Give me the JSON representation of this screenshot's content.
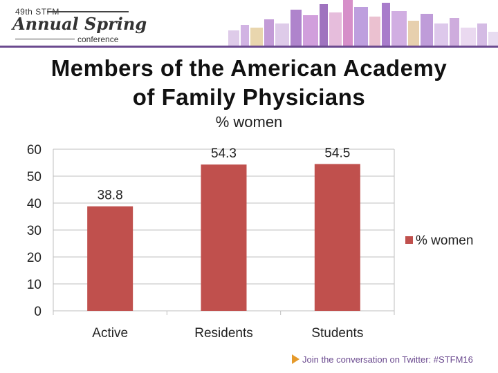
{
  "logo": {
    "edition": "49th STFM",
    "name": "Annual Spring",
    "subtitle": "conference"
  },
  "title": {
    "line1": "Members of the American Academy",
    "line2": "of Family Physicians"
  },
  "footer": {
    "text": "Join the conversation on Twitter: #STFM16"
  },
  "colors": {
    "accent": "#6b4a8f",
    "bar": "#c0504d",
    "footer_arrow": "#e59a2b"
  },
  "chart_data": {
    "type": "bar",
    "title": "% women",
    "categories": [
      "Active",
      "Residents",
      "Students"
    ],
    "series": [
      {
        "name": "% women",
        "values": [
          38.8,
          54.3,
          54.5
        ]
      }
    ],
    "data_labels": [
      "38.8",
      "54.3",
      "54.5"
    ],
    "yticks": [
      0,
      10,
      20,
      30,
      40,
      50,
      60
    ],
    "ylim": [
      0,
      60
    ],
    "grid": true,
    "legend": "right"
  }
}
